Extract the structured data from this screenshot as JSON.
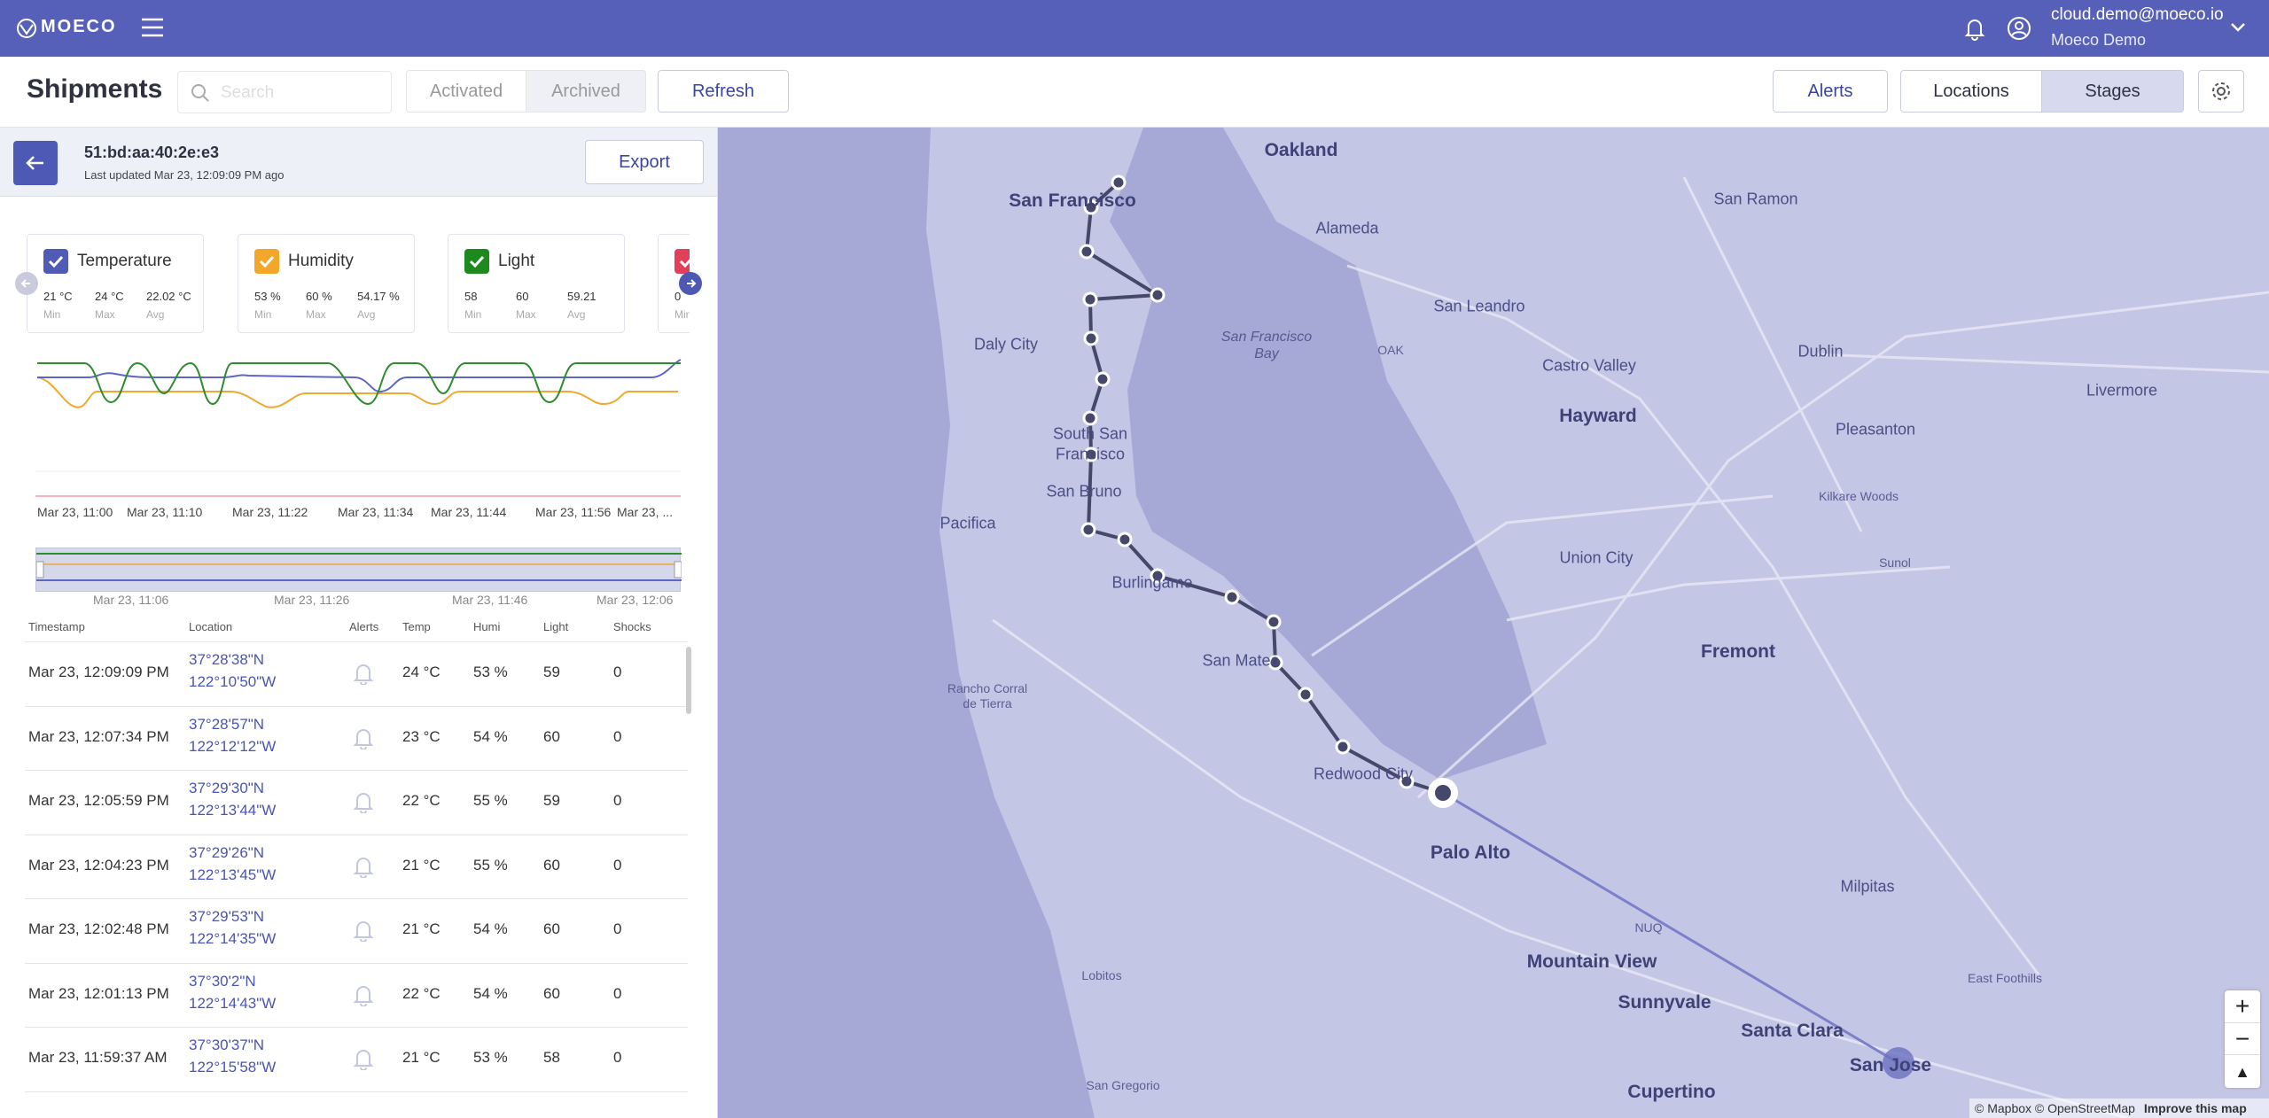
{
  "header": {
    "logo": "MOECO",
    "user_email": "cloud.demo@moeco.io",
    "user_name": "Moeco Demo"
  },
  "toolbar": {
    "title": "Shipments",
    "search_placeholder": "Search",
    "tabs": [
      "Activated",
      "Archived"
    ],
    "refresh": "Refresh",
    "alerts": "Alerts",
    "views": [
      "Locations",
      "Stages"
    ]
  },
  "device": {
    "id": "51:bd:aa:40:2e:e3",
    "last_updated": "Last updated Mar 23, 12:09:09 PM ago",
    "export": "Export"
  },
  "sensor_stat_labels": [
    "Min",
    "Max",
    "Avg"
  ],
  "sensors": [
    {
      "name": "Temperature",
      "min": "21 °C",
      "max": "24 °C",
      "avg": "22.02 °C"
    },
    {
      "name": "Humidity",
      "min": "53 %",
      "max": "60 %",
      "avg": "54.17 %"
    },
    {
      "name": "Light",
      "min": "58",
      "max": "60",
      "avg": "59.21"
    },
    {
      "min": "0"
    }
  ],
  "chart": {
    "time_labels": [
      "Mar 23, 11:00",
      "Mar 23, 11:10",
      "Mar 23, 11:22",
      "Mar 23, 11:34",
      "Mar 23, 11:44",
      "Mar 23, 11:56",
      "Mar 23, ..."
    ],
    "range_labels": [
      "Mar 23, 11:06",
      "Mar 23, 11:26",
      "Mar 23, 11:46",
      "Mar 23, 12:06"
    ]
  },
  "table": {
    "columns": [
      "Timestamp",
      "Location",
      "Alerts",
      "Temp",
      "Humi",
      "Light",
      "Shocks"
    ],
    "rows": [
      [
        "Mar 23, 12:09:09 PM",
        "37°28'38\"N",
        "122°10'50\"W",
        "24 °C",
        "53 %",
        59,
        0
      ],
      [
        "Mar 23, 12:07:34 PM",
        "37°28'57\"N",
        "122°12'12\"W",
        "23 °C",
        "54 %",
        60,
        0
      ],
      [
        "Mar 23, 12:05:59 PM",
        "37°29'30\"N",
        "122°13'44\"W",
        "22 °C",
        "55 %",
        59,
        0
      ],
      [
        "Mar 23, 12:04:23 PM",
        "37°29'26\"N",
        "122°13'45\"W",
        "21 °C",
        "55 %",
        60,
        0
      ],
      [
        "Mar 23, 12:02:48 PM",
        "37°29'53\"N",
        "122°14'35\"W",
        "21 °C",
        "54 %",
        60,
        0
      ],
      [
        "Mar 23, 12:01:13 PM",
        "37°30'2\"N",
        "122°14'43\"W",
        "22 °C",
        "54 %",
        60,
        0
      ],
      [
        "Mar 23, 11:59:37 AM",
        "37°30'37\"N",
        "122°15'58\"W",
        "21 °C",
        "53 %",
        58,
        0
      ]
    ]
  },
  "map": {
    "labels": [
      "Oakland",
      "San Francisco",
      "Alameda",
      "San Ramon",
      "San Francisco",
      "Bay",
      "San Leandro",
      "OAK",
      "Daly City",
      "Castro Valley",
      "Dublin",
      "Livermore",
      "Hayward",
      "Pleasanton",
      "South San",
      "Francisco",
      "Kilkare Woods",
      "San Bruno",
      "Pacifica",
      "Union City",
      "Sunol",
      "Burlingame",
      "Fremont",
      "San Mateo",
      "Rancho Corral",
      "de Tierra",
      "Redwood City",
      "Palo Alto",
      "Milpitas",
      "NUQ",
      "Mountain View",
      "Sunnyvale",
      "East Foothills",
      "Santa Clara",
      "Lobitos",
      "San Jose",
      "Cupertino",
      "San Gregorio"
    ],
    "attribution": "© Mapbox © OpenStreetMap",
    "improve": "Improve this map"
  }
}
